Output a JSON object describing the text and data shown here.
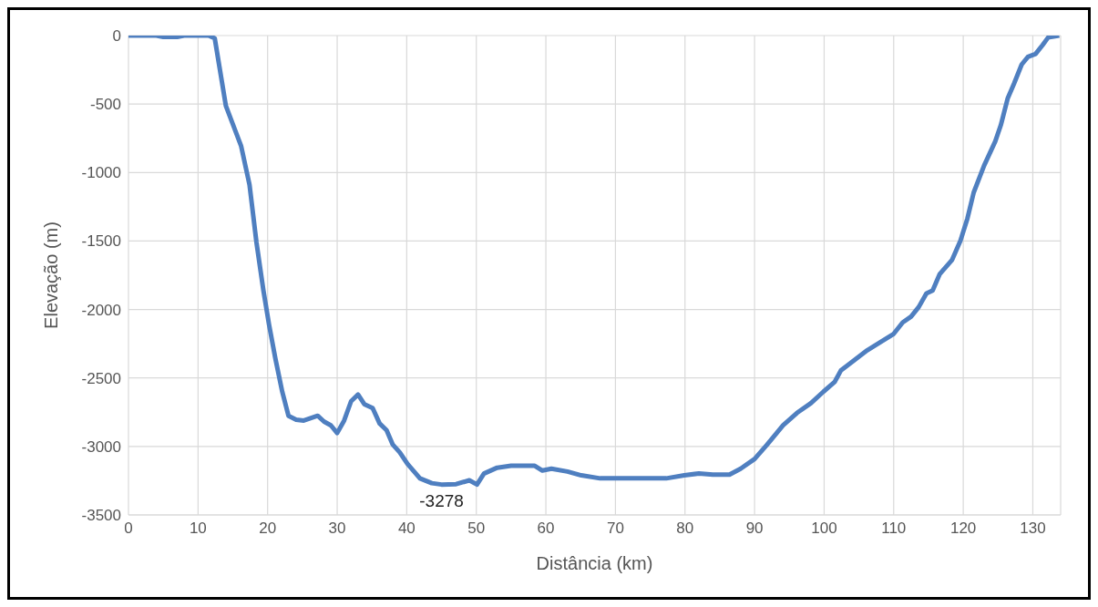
{
  "chart_data": {
    "type": "line",
    "xlabel": "Distância (km)",
    "ylabel": "Elevação (m)",
    "x": [
      0,
      4,
      5,
      7,
      8,
      11.5,
      12.4,
      14,
      16.2,
      17.4,
      18.4,
      19.4,
      20.2,
      21.1,
      22.1,
      23,
      24.1,
      25.2,
      27.2,
      28.1,
      29.1,
      30,
      31,
      32,
      33,
      33.9,
      35.1,
      36.1,
      37.1,
      38,
      39,
      40.1,
      41.9,
      43.6,
      45,
      47.1,
      49,
      50.1,
      51.1,
      53,
      55,
      58.4,
      59.5,
      60.8,
      63.1,
      65.1,
      67.8,
      73.2,
      77.3,
      79.9,
      82,
      84,
      86.4,
      88,
      90,
      91.8,
      94.1,
      96.1,
      98.1,
      99.9,
      101.5,
      102.4,
      104.2,
      106.2,
      108.2,
      110,
      111.3,
      112.5,
      113.6,
      114.7,
      115.6,
      116.6,
      118.4,
      119.6,
      120.6,
      121.5,
      123,
      124.6,
      125.4,
      126.4,
      127.3,
      128.4,
      129.3,
      130.4,
      131.4,
      132.2,
      133.8
    ],
    "series": [
      {
        "color": "#4f7fc0",
        "values": [
          0,
          0,
          -10,
          -10,
          0,
          0,
          -20,
          -513,
          -808,
          -1090,
          -1511,
          -1862,
          -2108,
          -2354,
          -2600,
          -2776,
          -2804,
          -2811,
          -2776,
          -2818,
          -2846,
          -2902,
          -2811,
          -2670,
          -2621,
          -2691,
          -2720,
          -2832,
          -2881,
          -2987,
          -3043,
          -3127,
          -3233,
          -3268,
          -3278,
          -3275,
          -3247,
          -3278,
          -3198,
          -3155,
          -3141,
          -3141,
          -3176,
          -3162,
          -3183,
          -3211,
          -3233,
          -3233,
          -3233,
          -3211,
          -3197,
          -3205,
          -3205,
          -3162,
          -3092,
          -2987,
          -2846,
          -2755,
          -2684,
          -2600,
          -2530,
          -2446,
          -2375,
          -2298,
          -2235,
          -2178,
          -2094,
          -2052,
          -1982,
          -1883,
          -1862,
          -1743,
          -1637,
          -1497,
          -1335,
          -1146,
          -949,
          -773,
          -654,
          -457,
          -351,
          -211,
          -155,
          -134,
          -70,
          -14,
          0
        ]
      }
    ],
    "xlim": [
      0,
      134
    ],
    "xticks": [
      0,
      10,
      20,
      30,
      40,
      50,
      60,
      70,
      80,
      90,
      100,
      110,
      120,
      130
    ],
    "ylim": [
      -3500,
      0
    ],
    "yticks": [
      0,
      -500,
      -1000,
      -1500,
      -2000,
      -2500,
      -3000,
      -3500
    ],
    "grid": true,
    "marker": "none",
    "line_style": "solid",
    "annotations": [
      {
        "text": "-3278",
        "x": 45,
        "y": -3278
      }
    ]
  }
}
